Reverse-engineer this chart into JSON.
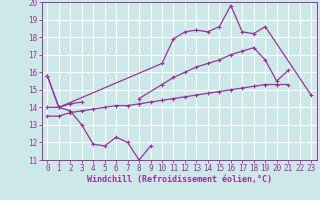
{
  "background_color": "#cce8e8",
  "grid_color": "#ffffff",
  "line_color": "#993399",
  "xlabel": "Windchill (Refroidissement éolien,°C)",
  "xlim": [
    -0.5,
    23.5
  ],
  "ylim": [
    11,
    20
  ],
  "yticks": [
    11,
    12,
    13,
    14,
    15,
    16,
    17,
    18,
    19,
    20
  ],
  "xticks": [
    0,
    1,
    2,
    3,
    4,
    5,
    6,
    7,
    8,
    9,
    10,
    11,
    12,
    13,
    14,
    15,
    16,
    17,
    18,
    19,
    20,
    21,
    22,
    23
  ],
  "lines": [
    {
      "segments": [
        {
          "x": [
            0,
            1,
            2,
            3,
            4,
            5,
            6,
            7,
            8,
            9
          ],
          "y": [
            15.8,
            14.0,
            13.8,
            13.0,
            11.9,
            11.8,
            12.3,
            12.0,
            11.0,
            11.8
          ]
        }
      ]
    },
    {
      "segments": [
        {
          "x": [
            0,
            1,
            10,
            11,
            12,
            13,
            14,
            15,
            16,
            17,
            18,
            19,
            23
          ],
          "y": [
            15.8,
            14.0,
            16.5,
            17.9,
            18.3,
            18.4,
            18.3,
            18.6,
            19.8,
            18.3,
            18.2,
            18.6,
            14.7
          ]
        }
      ]
    },
    {
      "segments": [
        {
          "x": [
            0,
            1,
            2,
            3
          ],
          "y": [
            14.0,
            14.0,
            14.2,
            14.3
          ]
        },
        {
          "x": [
            8,
            10,
            11,
            12,
            13,
            14,
            15,
            16,
            17,
            18,
            19,
            20,
            21
          ],
          "y": [
            14.5,
            15.3,
            15.7,
            16.0,
            16.3,
            16.5,
            16.7,
            17.0,
            17.2,
            17.4,
            16.7,
            15.5,
            16.1
          ]
        }
      ]
    },
    {
      "segments": [
        {
          "x": [
            0,
            1,
            2,
            3,
            4,
            5,
            6,
            7,
            8,
            9,
            10,
            11,
            12,
            13,
            14,
            15,
            16,
            17,
            18,
            19,
            20,
            21
          ],
          "y": [
            13.5,
            13.5,
            13.7,
            13.8,
            13.9,
            14.0,
            14.1,
            14.1,
            14.2,
            14.3,
            14.4,
            14.5,
            14.6,
            14.7,
            14.8,
            14.9,
            15.0,
            15.1,
            15.2,
            15.3,
            15.3,
            15.3
          ]
        }
      ]
    }
  ]
}
